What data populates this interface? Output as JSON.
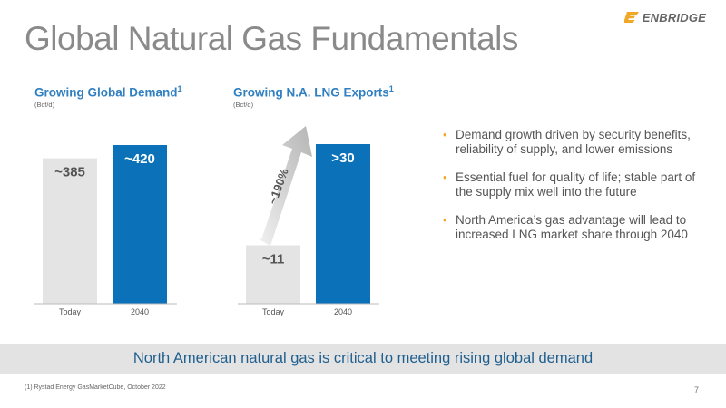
{
  "title": "Global Natural Gas Fundamentals",
  "logo": {
    "text": "ENBRIDGE",
    "icon": "enbridge-e-logo"
  },
  "colors": {
    "bar_today": "#e4e4e4",
    "bar_2040": "#0b72b9",
    "heading": "#2f7fc1",
    "bullet": "#f0a828",
    "banner_text": "#1f5f8f"
  },
  "chart_data": [
    {
      "type": "bar",
      "title": "Growing Global Demand",
      "title_footnote": "1",
      "unit": "(Bcf/d)",
      "categories": [
        "Today",
        "2040"
      ],
      "values": [
        385,
        420
      ],
      "data_labels": [
        "~385",
        "~420"
      ]
    },
    {
      "type": "bar",
      "title": "Growing N.A. LNG Exports",
      "title_footnote": "1",
      "unit": "(Bcf/d)",
      "categories": [
        "Today",
        "2040"
      ],
      "values": [
        11,
        30
      ],
      "data_labels": [
        "~11",
        ">30"
      ],
      "annotation": "~190%"
    }
  ],
  "bullets": [
    "Demand growth driven by security benefits, reliability of supply, and lower emissions",
    "Essential fuel for quality of life; stable part of the supply mix well into the future",
    "North America’s gas advantage will lead to increased LNG market share through 2040"
  ],
  "banner": "North American natural gas is critical to meeting rising global demand",
  "footnote": "(1) Rystad Energy GasMarketCube, October 2022",
  "page_number": "7"
}
